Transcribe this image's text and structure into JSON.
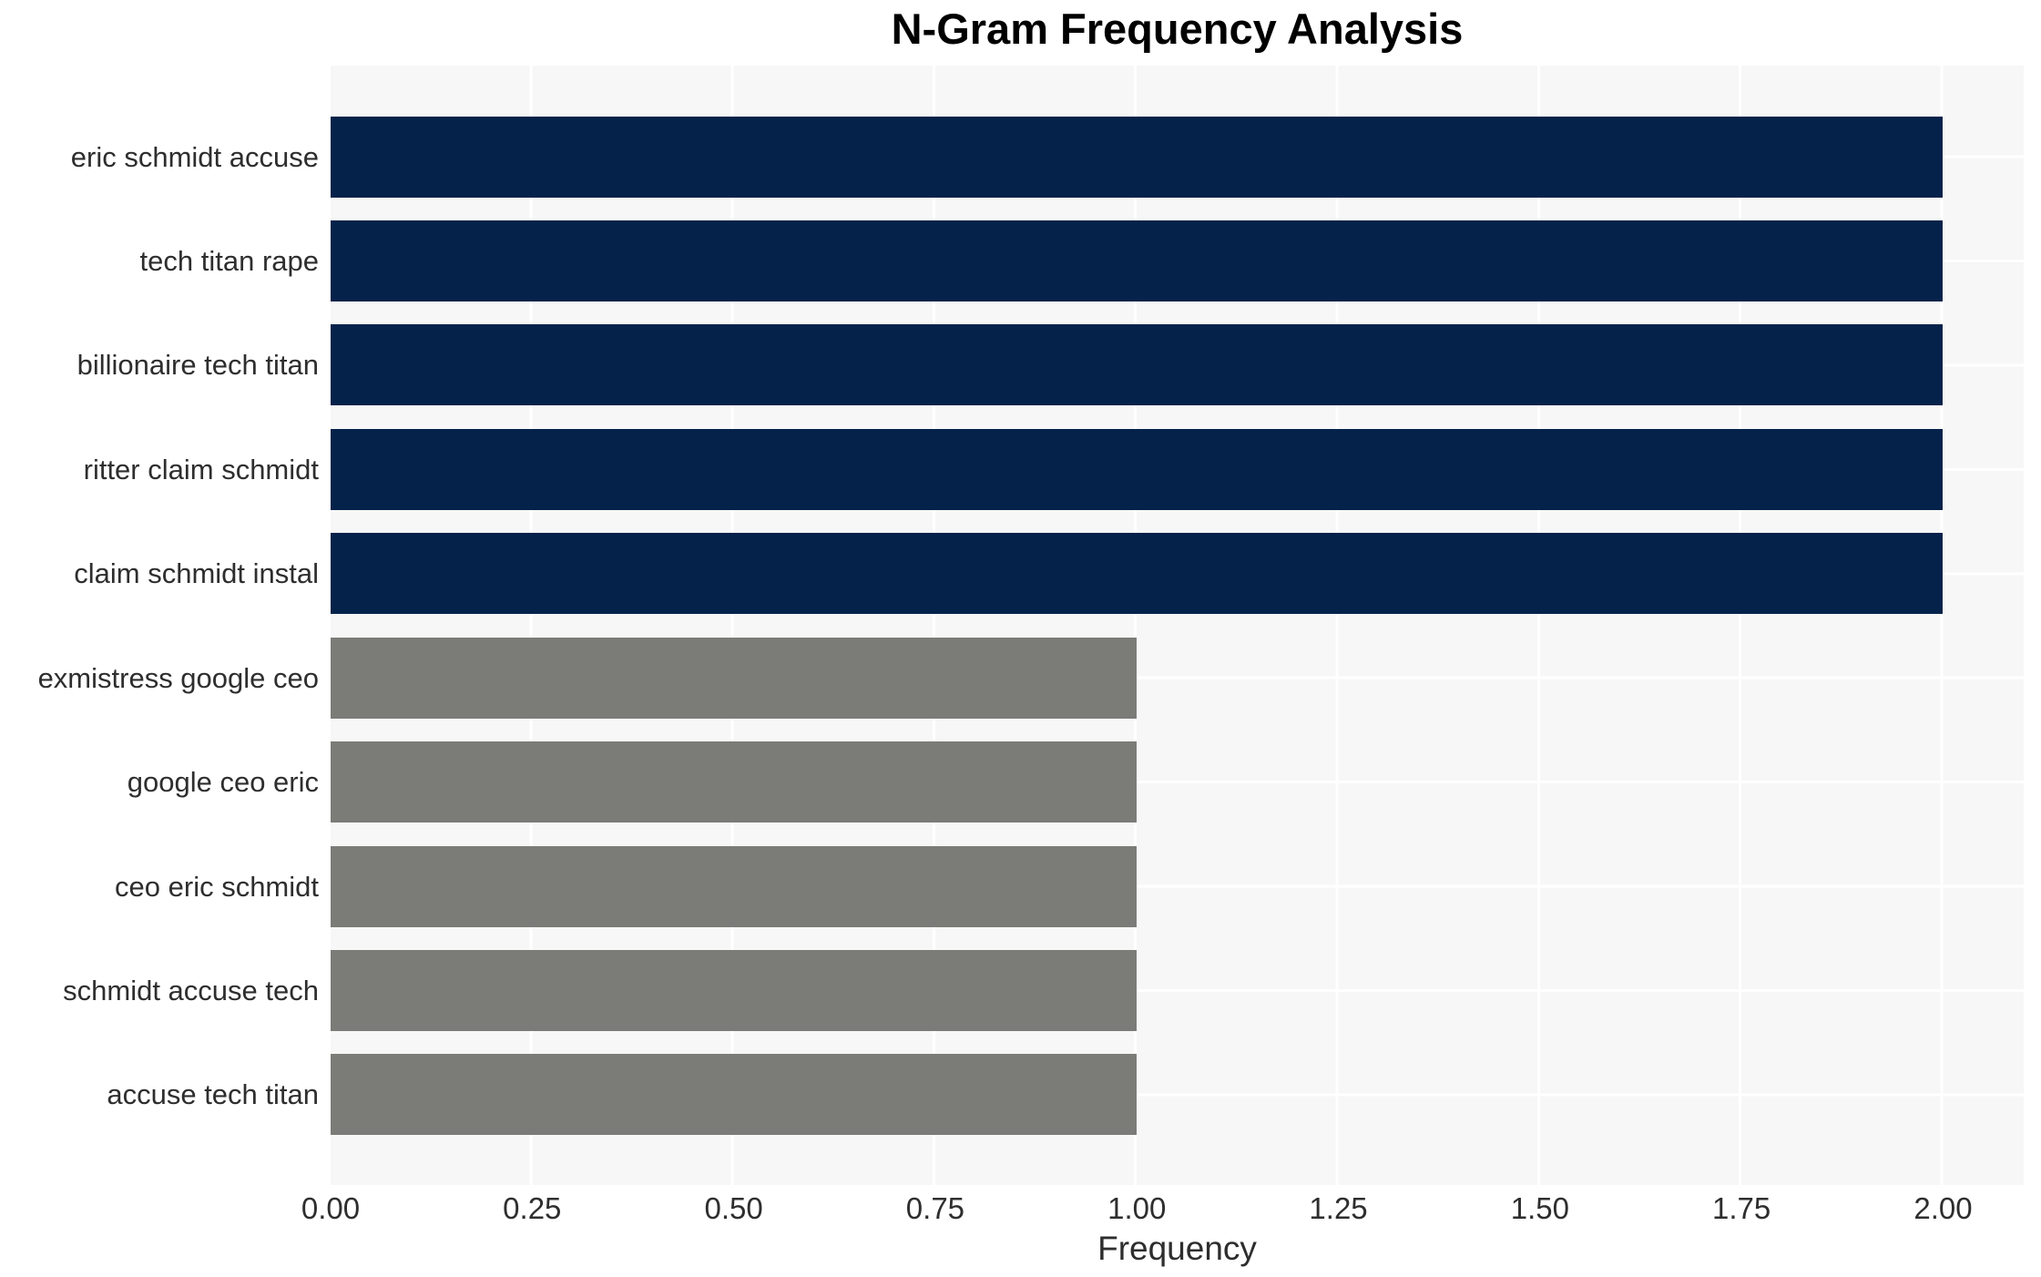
{
  "title": "N-Gram Frequency Analysis",
  "colors": {
    "bar_high": "#04224a",
    "bar_low": "#7b7b78",
    "plot_background": "#f7f7f7",
    "gridline": "#ffffff",
    "tick_text": "#2e2e2e",
    "title_text": "#000000"
  },
  "chart_data": {
    "type": "bar",
    "orientation": "horizontal",
    "title": "N-Gram Frequency Analysis",
    "xlabel": "Frequency",
    "ylabel": "",
    "grid": true,
    "legend": false,
    "xlim": [
      0,
      2.1
    ],
    "categories": [
      "eric schmidt accuse",
      "tech titan rape",
      "billionaire tech titan",
      "ritter claim schmidt",
      "claim schmidt instal",
      "exmistress google ceo",
      "google ceo eric",
      "ceo eric schmidt",
      "schmidt accuse tech",
      "accuse tech titan"
    ],
    "values": [
      2,
      2,
      2,
      2,
      2,
      1,
      1,
      1,
      1,
      1
    ],
    "bar_colors": [
      "#04224a",
      "#04224a",
      "#04224a",
      "#04224a",
      "#04224a",
      "#7b7b78",
      "#7b7b78",
      "#7b7b78",
      "#7b7b78",
      "#7b7b78"
    ],
    "x_tick_values": [
      0,
      0.25,
      0.5,
      0.75,
      1.0,
      1.25,
      1.5,
      1.75,
      2.0
    ],
    "x_tick_labels": [
      "0.00",
      "0.25",
      "0.50",
      "0.75",
      "1.00",
      "1.25",
      "1.50",
      "1.75",
      "2.00"
    ]
  }
}
